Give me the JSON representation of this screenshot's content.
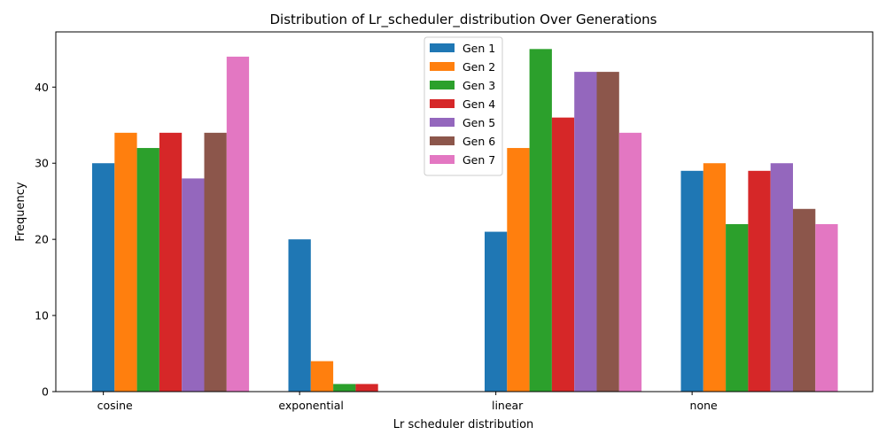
{
  "chart_data": {
    "type": "bar",
    "title": "Distribution of Lr_scheduler_distribution Over Generations",
    "xlabel": "Lr scheduler distribution",
    "ylabel": "Frequency",
    "categories": [
      "cosine",
      "exponential",
      "linear",
      "none"
    ],
    "ylim": [
      0,
      47.25
    ],
    "yticks": [
      0,
      10,
      20,
      30,
      40
    ],
    "grid": false,
    "legend_position": "top-center",
    "series": [
      {
        "name": "Gen 1",
        "color": "#1f77b4",
        "values": [
          30,
          20,
          21,
          29
        ]
      },
      {
        "name": "Gen 2",
        "color": "#ff7f0e",
        "values": [
          34,
          4,
          32,
          30
        ]
      },
      {
        "name": "Gen 3",
        "color": "#2ca02c",
        "values": [
          32,
          1,
          45,
          22
        ]
      },
      {
        "name": "Gen 4",
        "color": "#d62728",
        "values": [
          34,
          1,
          36,
          29
        ]
      },
      {
        "name": "Gen 5",
        "color": "#9467bd",
        "values": [
          28,
          0,
          42,
          30
        ]
      },
      {
        "name": "Gen 6",
        "color": "#8c564b",
        "values": [
          34,
          0,
          42,
          24
        ]
      },
      {
        "name": "Gen 7",
        "color": "#e377c2",
        "values": [
          44,
          0,
          34,
          22
        ]
      }
    ]
  }
}
